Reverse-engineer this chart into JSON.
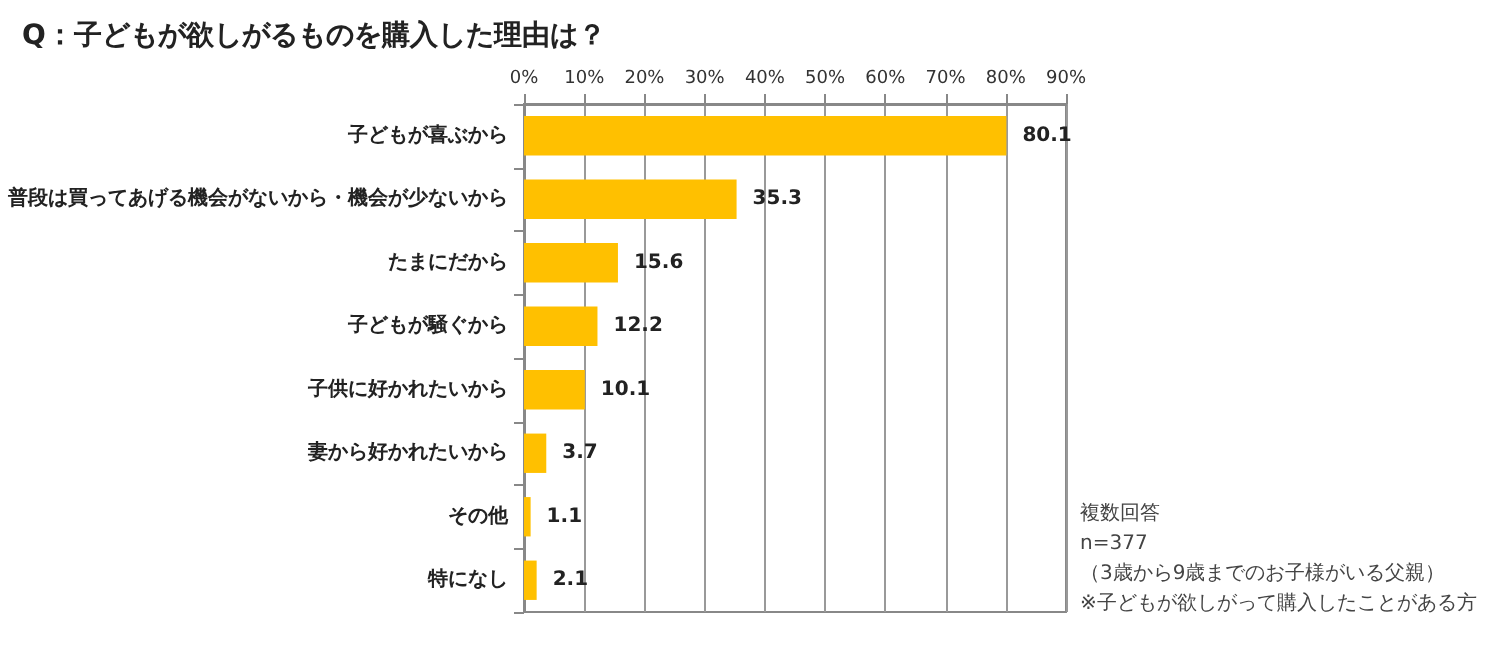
{
  "chart_data": {
    "type": "bar",
    "orientation": "horizontal",
    "title": "Q：子どもが欲しがるものを購入した理由は？",
    "categories": [
      "子どもが喜ぶから",
      "普段は買ってあげる機会がないから・機会が少ないから",
      "たまにだから",
      "子どもが騒ぐから",
      "子供に好かれたいから",
      "妻から好かれたいから",
      "その他",
      "特になし"
    ],
    "values": [
      80.1,
      35.3,
      15.6,
      12.2,
      10.1,
      3.7,
      1.1,
      2.1
    ],
    "color": "#ffc000",
    "xlim": [
      0,
      90
    ],
    "xticks": [
      {
        "value": 0,
        "label": "0%"
      },
      {
        "value": 10,
        "label": "10%"
      },
      {
        "value": 20,
        "label": "20%"
      },
      {
        "value": 30,
        "label": "30%"
      },
      {
        "value": 40,
        "label": "40%"
      },
      {
        "value": 50,
        "label": "50%"
      },
      {
        "value": 60,
        "label": "60%"
      },
      {
        "value": 70,
        "label": "70%"
      },
      {
        "value": 80,
        "label": "80%"
      },
      {
        "value": 90,
        "label": "90%"
      }
    ],
    "grid": "x",
    "data_labels": true,
    "annotations": [
      "複数回答",
      "n=377",
      "（3歳から9歳までのお子様がいる父親）",
      "※子どもが欲しがって購入したことがある方"
    ]
  }
}
